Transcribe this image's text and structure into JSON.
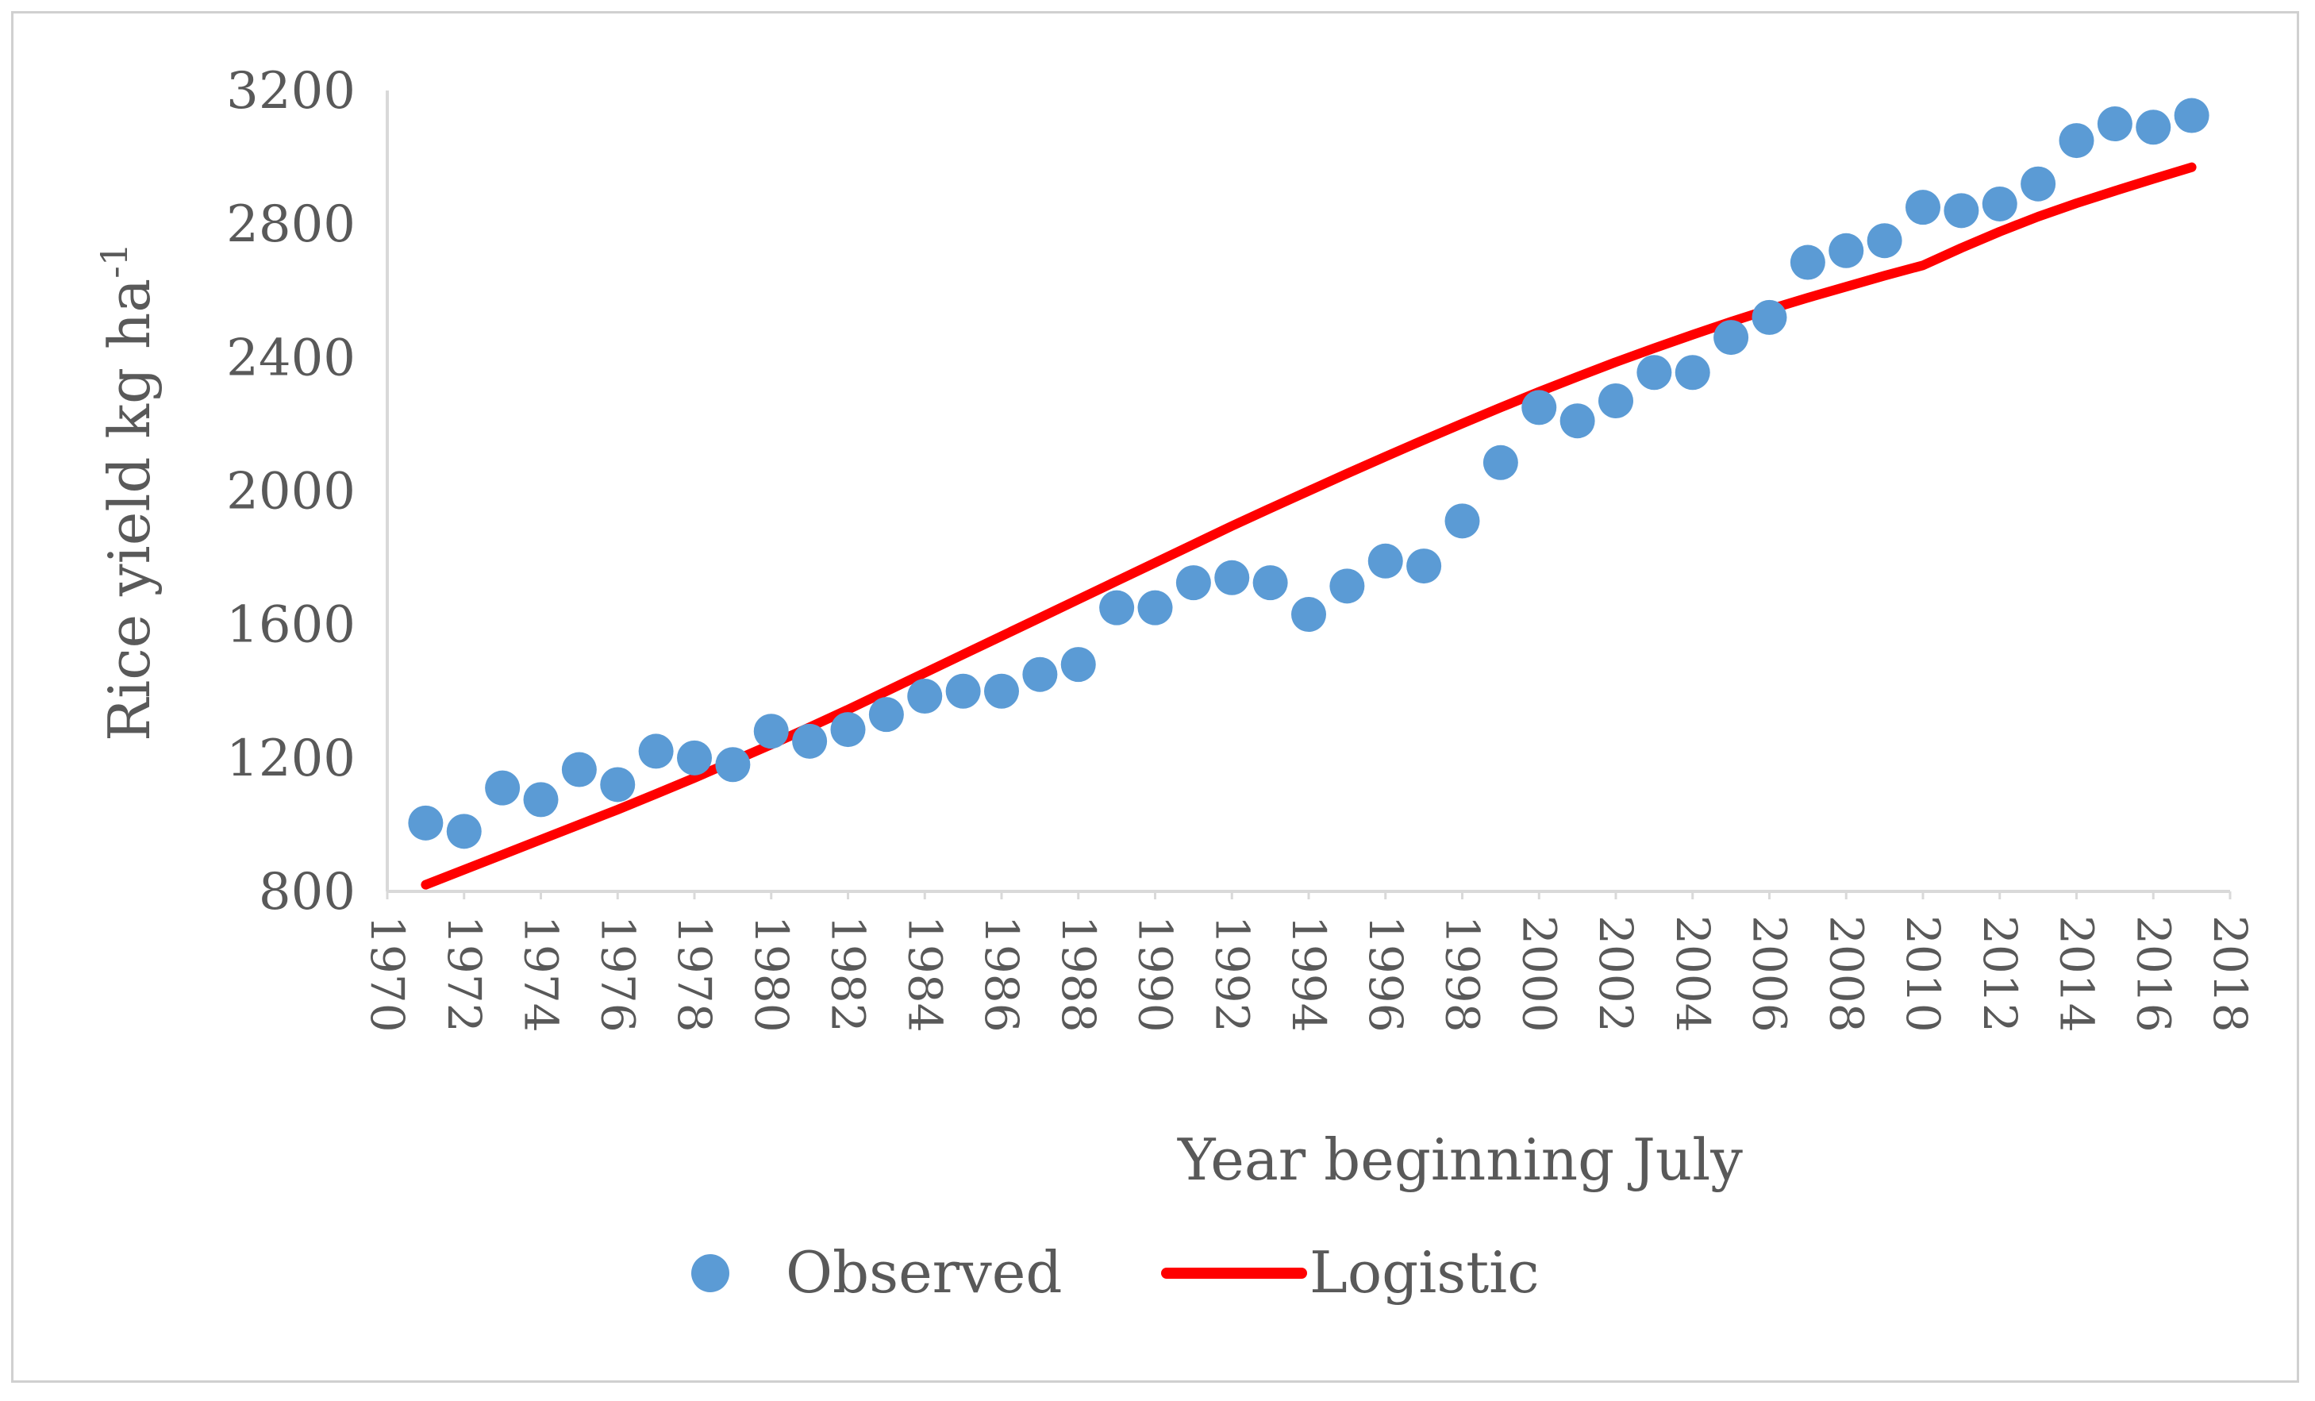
{
  "chart_data": {
    "type": "scatter",
    "title": "",
    "xlabel": "Year beginning July",
    "ylabel": "Rice yield kg ha",
    "ylabel_superscript": "-1",
    "xlim": [
      1970,
      2018
    ],
    "ylim": [
      800,
      3200
    ],
    "x_ticks": [
      "1970",
      "1972",
      "1974",
      "1976",
      "1978",
      "1980",
      "1982",
      "1984",
      "1986",
      "1988",
      "1990",
      "1992",
      "1994",
      "1996",
      "1998",
      "2000",
      "2002",
      "2004",
      "2006",
      "2008",
      "2010",
      "2012",
      "2014",
      "2016",
      "2018"
    ],
    "y_ticks": [
      "800",
      "1200",
      "1600",
      "2000",
      "2400",
      "2800",
      "3200"
    ],
    "grid": false,
    "legend_position": "bottom-center",
    "series": [
      {
        "name": "Observed",
        "kind": "scatter",
        "color": "#5b9bd5",
        "x": [
          1971,
          1972,
          1973,
          1974,
          1975,
          1976,
          1977,
          1978,
          1979,
          1980,
          1981,
          1982,
          1983,
          1984,
          1985,
          1986,
          1987,
          1988,
          1989,
          1990,
          1991,
          1992,
          1993,
          1994,
          1995,
          1996,
          1997,
          1998,
          1999,
          2000,
          2001,
          2002,
          2003,
          2004,
          2005,
          2006,
          2007,
          2008,
          2009,
          2010,
          2011,
          2012,
          2013,
          2014,
          2015,
          2016,
          2017
        ],
        "values": [
          1005,
          980,
          1110,
          1075,
          1165,
          1120,
          1220,
          1200,
          1180,
          1280,
          1250,
          1285,
          1330,
          1385,
          1400,
          1400,
          1450,
          1480,
          1650,
          1650,
          1725,
          1740,
          1725,
          1630,
          1715,
          1790,
          1775,
          1910,
          2085,
          2250,
          2210,
          2270,
          2355,
          2355,
          2460,
          2520,
          2685,
          2720,
          2750,
          2850,
          2840,
          2860,
          2920,
          3050,
          3100,
          3090,
          3125
        ]
      },
      {
        "name": "Logistic",
        "kind": "line",
        "color": "#ff0000",
        "x": [
          1971,
          1972,
          1973,
          1974,
          1975,
          1976,
          1977,
          1978,
          1979,
          1980,
          1981,
          1982,
          1983,
          1984,
          1985,
          1986,
          1987,
          1988,
          1989,
          1990,
          1991,
          1992,
          1993,
          1994,
          1995,
          1996,
          1997,
          1998,
          1999,
          2000,
          2001,
          2002,
          2003,
          2004,
          2005,
          2006,
          2007,
          2008,
          2009,
          2010,
          2011,
          2012,
          2013,
          2014,
          2015,
          2016,
          2017
        ],
        "values": [
          820,
          865,
          910,
          955,
          1000,
          1045,
          1092,
          1140,
          1190,
          1240,
          1292,
          1345,
          1400,
          1455,
          1510,
          1565,
          1620,
          1675,
          1730,
          1785,
          1840,
          1895,
          1948,
          2000,
          2052,
          2103,
          2153,
          2202,
          2250,
          2297,
          2342,
          2386,
          2428,
          2468,
          2507,
          2544,
          2579,
          2612,
          2645,
          2676,
          2728,
          2777,
          2822,
          2862,
          2899,
          2935,
          2970
        ]
      }
    ]
  }
}
